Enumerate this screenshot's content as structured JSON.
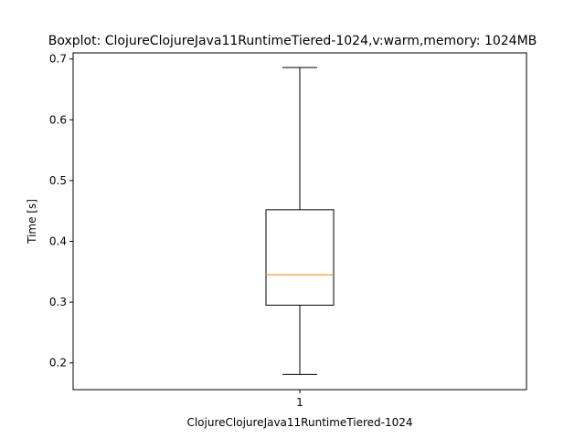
{
  "chart_data": {
    "type": "boxplot",
    "title": "Boxplot: ClojureClojureJava11RuntimeTiered-1024,v:warm,memory: 1024MB",
    "xlabel": "ClojureClojureJava11RuntimeTiered-1024",
    "ylabel": "Time [s]",
    "ylim": [
      0.156,
      0.71
    ],
    "x_ticks": [
      "1"
    ],
    "y_ticks": [
      0.2,
      0.3,
      0.4,
      0.5,
      0.6,
      0.7
    ],
    "y_tick_labels": [
      "0.2",
      "0.3",
      "0.4",
      "0.5",
      "0.6",
      "0.7"
    ],
    "boxes": [
      {
        "position": 1,
        "whisker_low": 0.181,
        "q1": 0.295,
        "median": 0.345,
        "q3": 0.452,
        "whisker_high": 0.686
      }
    ],
    "grid": false,
    "colors": {
      "median": "#ff7f0e",
      "box": "#000000",
      "background": "#ffffff"
    }
  }
}
